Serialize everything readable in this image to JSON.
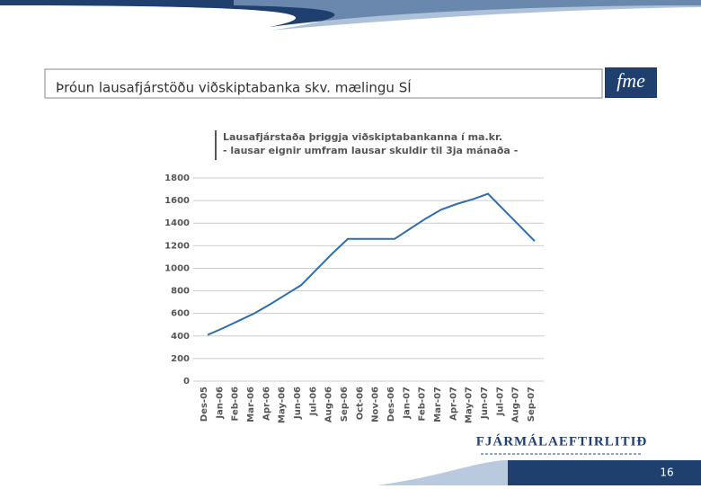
{
  "slide": {
    "title": "Þróun lausafjárstöðu viðskiptabanka skv. mælingu SÍ",
    "logo": "fme",
    "footer": "FJÁRMÁLAEFTIRLITIÐ",
    "page_number": "16"
  },
  "chart_data": {
    "type": "line",
    "title": "Lausafjárstaða þriggja viðskiptabankanna í ma.kr.",
    "subtitle": "- lausar eignir umfram lausar skuldir til 3ja mánaða -",
    "categories": [
      "Des-05",
      "Jan-06",
      "Feb-06",
      "Mar-06",
      "Apr-06",
      "May-06",
      "Jun-06",
      "Jul-06",
      "Aug-06",
      "Sep-06",
      "Oct-06",
      "Nov-06",
      "Des-06",
      "Jan-07",
      "Feb-07",
      "Mar-07",
      "Apr-07",
      "May-07",
      "Jun-07",
      "Jul-07",
      "Aug-07",
      "Sep-07"
    ],
    "values": [
      410,
      470,
      535,
      600,
      680,
      765,
      850,
      990,
      1130,
      1260,
      1260,
      1260,
      1260,
      1350,
      1440,
      1520,
      1570,
      1610,
      1660,
      1520,
      1380,
      1240
    ],
    "color": "#2f6ea8",
    "ylim": [
      0,
      1800
    ],
    "yticks": [
      0,
      200,
      400,
      600,
      800,
      1000,
      1200,
      1400,
      1600,
      1800
    ],
    "grid": true
  }
}
